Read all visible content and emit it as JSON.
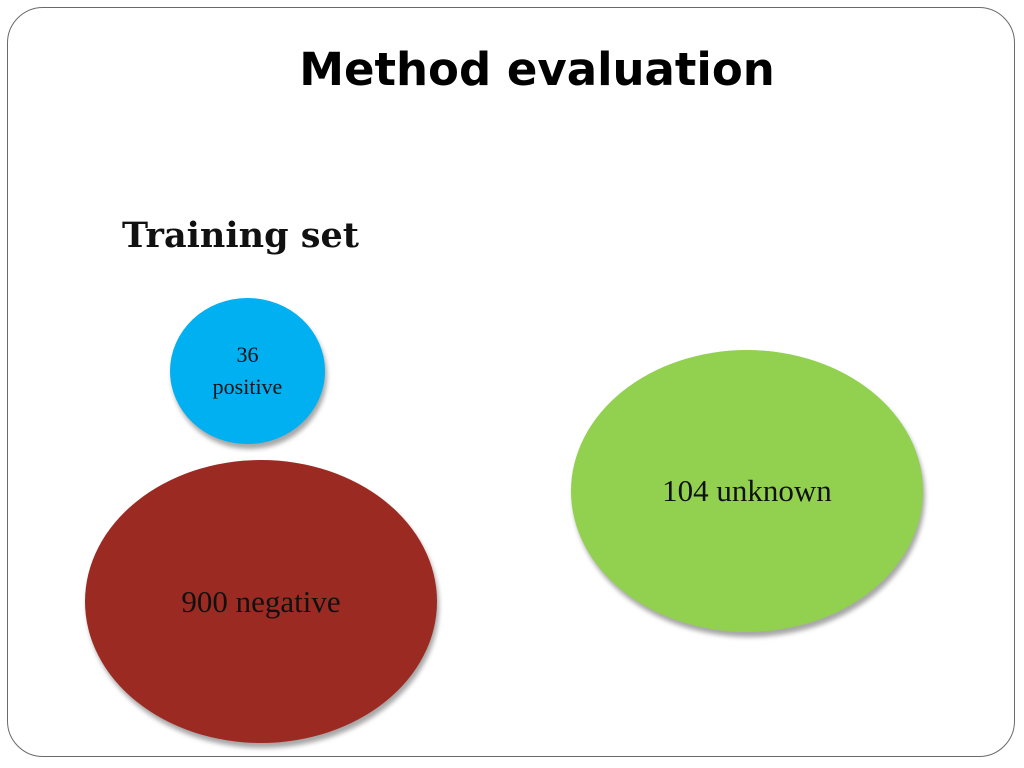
{
  "slide": {
    "title": "Method evaluation",
    "subtitle": "Training set"
  },
  "sets": [
    {
      "name": "positive",
      "count_label": "36",
      "text": "positive",
      "color": "#00b0f0"
    },
    {
      "name": "negative",
      "text": "900 negative",
      "color": "#9b2b22"
    },
    {
      "name": "unknown",
      "text": "104 unknown",
      "color": "#92d050"
    }
  ]
}
